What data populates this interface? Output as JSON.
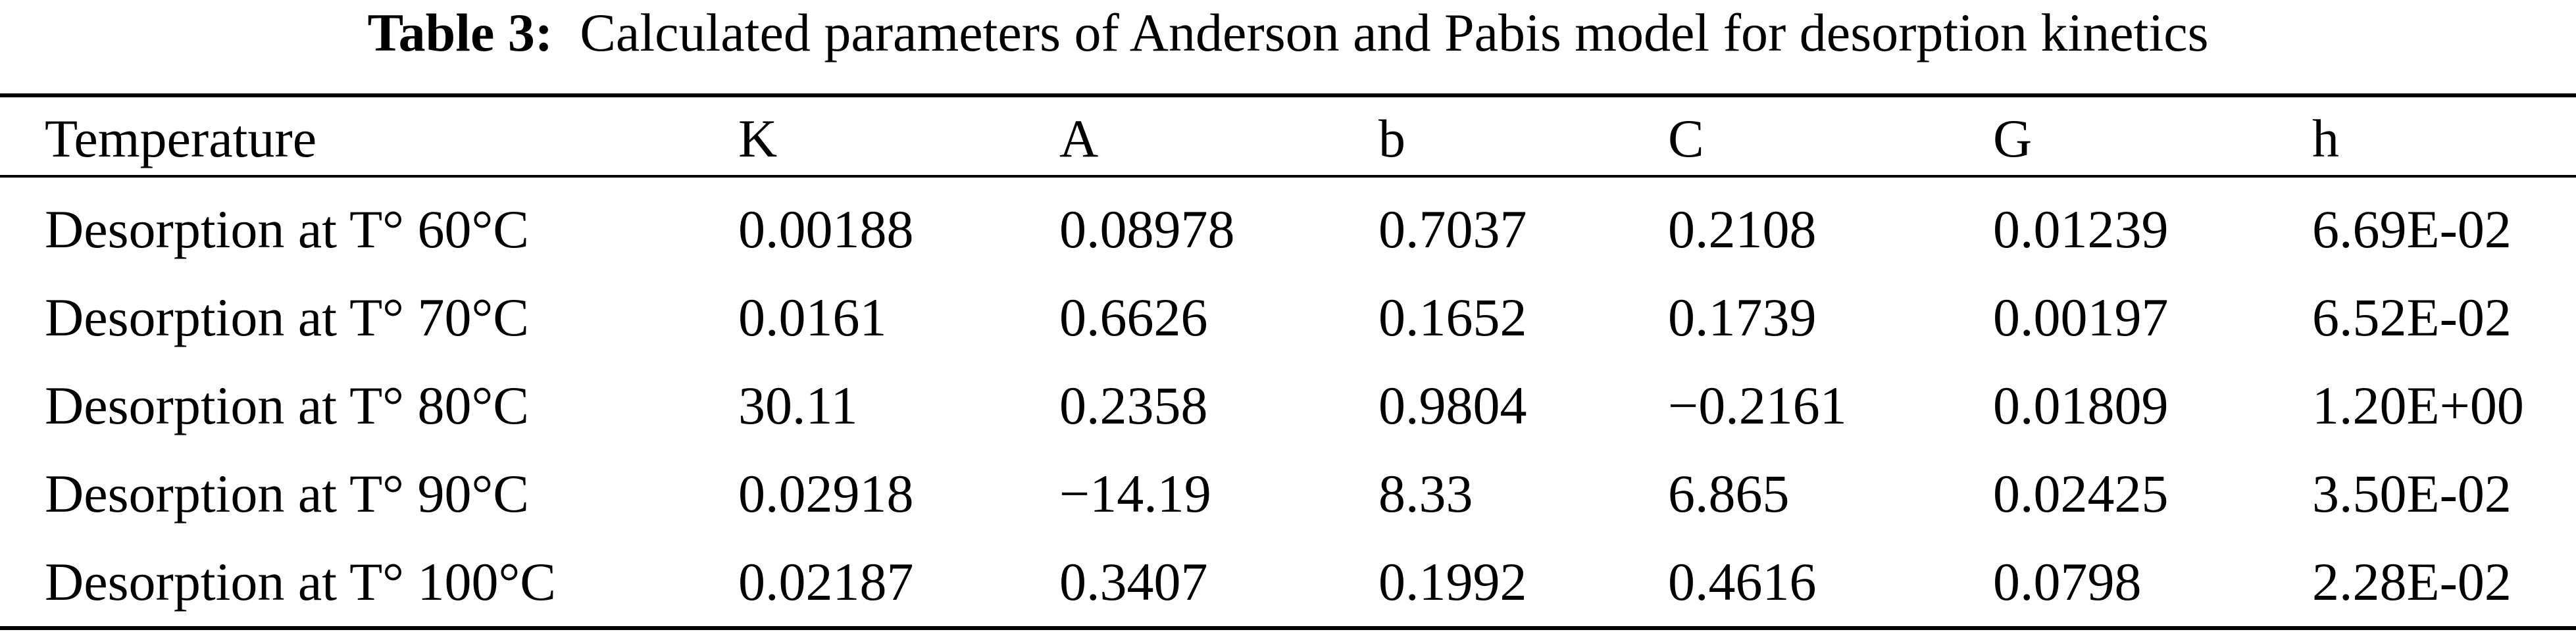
{
  "caption": {
    "label": "Table 3:",
    "title": "Calculated parameters of Anderson and Pabis model for desorption kinetics"
  },
  "table": {
    "headers": [
      "Temperature",
      "K",
      "A",
      "b",
      "C",
      "G",
      "h"
    ],
    "rows": [
      [
        "Desorption at T° 60°C",
        "0.00188",
        "0.08978",
        "0.7037",
        "0.2108",
        "0.01239",
        "6.69E-02"
      ],
      [
        "Desorption at T° 70°C",
        "0.0161",
        "0.6626",
        "0.1652",
        "0.1739",
        "0.00197",
        "6.52E-02"
      ],
      [
        "Desorption at T° 80°C",
        "30.11",
        "0.2358",
        "0.9804",
        "−0.2161",
        "0.01809",
        "1.20E+00"
      ],
      [
        "Desorption at T° 90°C",
        "0.02918",
        "−14.19",
        "8.33",
        "6.865",
        "0.02425",
        "3.50E-02"
      ],
      [
        "Desorption at T° 100°C",
        "0.02187",
        "0.3407",
        "0.1992",
        "0.4616",
        "0.0798",
        "2.28E-02"
      ]
    ]
  }
}
